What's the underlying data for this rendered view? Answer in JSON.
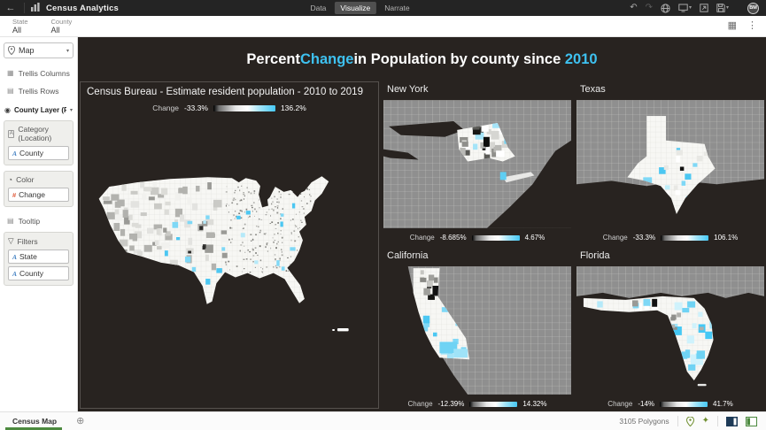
{
  "theme": {
    "accent": "#3ec1f0",
    "canvas_bg": "#282320",
    "legend_min_color": "#000000",
    "legend_mid_color": "#ffffff",
    "legend_max_color": "#45c8f5",
    "green_accent": "#4c8a3f"
  },
  "icons": {
    "back": "←",
    "undo": "↶",
    "redo": "↷",
    "kebab": "⋮",
    "grid": "▦",
    "caret": "▾",
    "trellis_cols": "▦",
    "trellis_rows": "▤",
    "tooltip_box": "▤",
    "funnel": "▽",
    "layer_dot": "◉",
    "palette": "◔",
    "sparkle": "✦",
    "add_canvas": "⊕",
    "dim_marker": "A",
    "measure_marker": "#",
    "category_marker": "A"
  },
  "topbar": {
    "title": "Census Analytics",
    "tabs": [
      {
        "label": "Data",
        "active": false
      },
      {
        "label": "Visualize",
        "active": true
      },
      {
        "label": "Narrate",
        "active": false
      }
    ],
    "avatar": "BM"
  },
  "filterbar": {
    "filters": [
      {
        "label": "State",
        "value": "All"
      },
      {
        "label": "County",
        "value": "All"
      }
    ]
  },
  "sidebar": {
    "viz_type": "Map",
    "trellis_columns": "Trellis Columns",
    "trellis_rows": "Trellis Rows",
    "layer": "County Layer (Pol...",
    "category_label": "Category (Location)",
    "category_chip": "County",
    "color_label": "Color",
    "color_chip": "Change",
    "tooltip": "Tooltip",
    "filters_label": "Filters",
    "filter_chips": [
      "State",
      "County"
    ]
  },
  "canvas": {
    "title_parts": [
      {
        "text": "Percent "
      },
      {
        "text": "Change",
        "accent": true
      },
      {
        "text": " in Population by county since "
      },
      {
        "text": "2010",
        "accent": true
      }
    ]
  },
  "panels": [
    {
      "title": "Census Bureau - Estimate resident population - 2010 to 2019",
      "legend": {
        "label": "Change",
        "min": "-33.3%",
        "max": "136.2%"
      }
    },
    {
      "title": "New York",
      "legend": {
        "label": "Change",
        "min": "-8.685%",
        "max": "4.67%"
      }
    },
    {
      "title": "Texas",
      "legend": {
        "label": "Change",
        "min": "-33.3%",
        "max": "106.1%"
      }
    },
    {
      "title": "California",
      "legend": {
        "label": "Change",
        "min": "-12.39%",
        "max": "14.32%"
      }
    },
    {
      "title": "Florida",
      "legend": {
        "label": "Change",
        "min": "-14%",
        "max": "41.7%"
      }
    }
  ],
  "statusbar": {
    "canvas_tab": "Census Map",
    "polygon_count": "3105 Polygons"
  }
}
